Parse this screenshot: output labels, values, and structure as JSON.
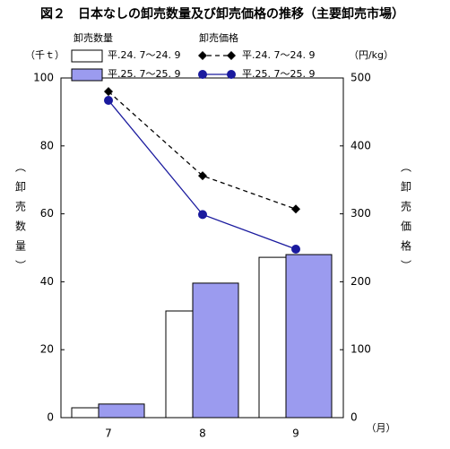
{
  "chart_data": {
    "type": "combo",
    "title": "図２　日本なしの卸売数量及び卸売価格の推移（主要卸売市場）",
    "bar_legend_title": "卸売数量",
    "line_legend_title": "卸売価格",
    "ylabel": "（卸売数量）",
    "y2label": "（卸売価格）",
    "ylabel_unit": "（千ｔ）",
    "y2label_unit": "（円/kg）",
    "xlabel": "（月）",
    "categories": [
      "7",
      "8",
      "9"
    ],
    "series": [
      {
        "name": "平.24. 7～24. 9",
        "type": "bar",
        "color": "#ffffff",
        "values": [
          2.9,
          31.4,
          47.2
        ]
      },
      {
        "name": "平.25. 7～25. 9",
        "type": "bar",
        "color": "#9b9bef",
        "values": [
          4.0,
          39.6,
          48.0
        ]
      },
      {
        "name": "平.24. 7～24. 9",
        "type": "line",
        "color": "#000000",
        "dashed": true,
        "marker": "diamond",
        "axis": "y2",
        "values": [
          480,
          356,
          307
        ]
      },
      {
        "name": "平.25. 7～25. 9",
        "type": "line",
        "color": "#1a1a9e",
        "dashed": false,
        "marker": "circle",
        "axis": "y2",
        "values": [
          467,
          299,
          248
        ]
      }
    ],
    "ylim": [
      0,
      100
    ],
    "yticks": [
      0,
      20,
      40,
      60,
      80,
      100
    ],
    "y2lim": [
      0,
      500
    ],
    "y2ticks": [
      0,
      100,
      200,
      300,
      400,
      500
    ]
  }
}
